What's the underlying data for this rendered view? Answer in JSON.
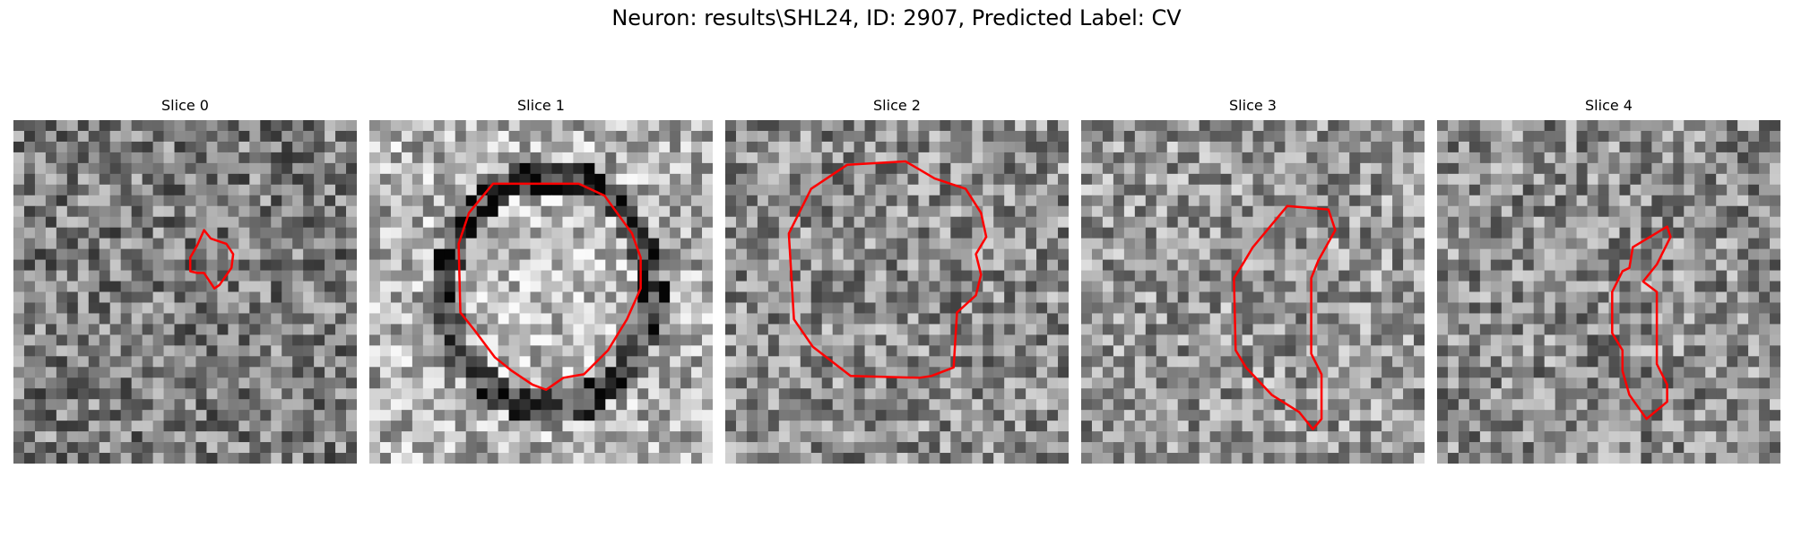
{
  "title": "Neuron: results\\SHL24, ID: 2907, Predicted Label: CV",
  "contour_color": "#ff0000",
  "panels": [
    {
      "title": "Slice 0",
      "seed": 11,
      "mean": 125,
      "ring": 0,
      "contour": [
        [
          0.555,
          0.32
        ],
        [
          0.575,
          0.345
        ],
        [
          0.62,
          0.36
        ],
        [
          0.64,
          0.39
        ],
        [
          0.635,
          0.43
        ],
        [
          0.6,
          0.48
        ],
        [
          0.585,
          0.49
        ],
        [
          0.555,
          0.445
        ],
        [
          0.535,
          0.445
        ],
        [
          0.515,
          0.44
        ],
        [
          0.515,
          0.4
        ],
        [
          0.535,
          0.365
        ]
      ]
    },
    {
      "title": "Slice 1",
      "seed": 23,
      "mean": 175,
      "ring": 1,
      "contour": [
        [
          0.36,
          0.185
        ],
        [
          0.61,
          0.185
        ],
        [
          0.685,
          0.22
        ],
        [
          0.765,
          0.33
        ],
        [
          0.79,
          0.4
        ],
        [
          0.79,
          0.49
        ],
        [
          0.75,
          0.58
        ],
        [
          0.695,
          0.67
        ],
        [
          0.625,
          0.74
        ],
        [
          0.565,
          0.75
        ],
        [
          0.515,
          0.785
        ],
        [
          0.475,
          0.77
        ],
        [
          0.415,
          0.73
        ],
        [
          0.365,
          0.69
        ],
        [
          0.305,
          0.61
        ],
        [
          0.265,
          0.56
        ],
        [
          0.26,
          0.36
        ],
        [
          0.29,
          0.27
        ]
      ]
    },
    {
      "title": "Slice 2",
      "seed": 37,
      "mean": 140,
      "ring": 0,
      "contour": [
        [
          0.355,
          0.13
        ],
        [
          0.525,
          0.12
        ],
        [
          0.61,
          0.17
        ],
        [
          0.7,
          0.2
        ],
        [
          0.745,
          0.27
        ],
        [
          0.76,
          0.34
        ],
        [
          0.73,
          0.39
        ],
        [
          0.745,
          0.45
        ],
        [
          0.73,
          0.51
        ],
        [
          0.675,
          0.56
        ],
        [
          0.665,
          0.72
        ],
        [
          0.6,
          0.745
        ],
        [
          0.565,
          0.75
        ],
        [
          0.365,
          0.745
        ],
        [
          0.255,
          0.66
        ],
        [
          0.2,
          0.58
        ],
        [
          0.185,
          0.33
        ],
        [
          0.25,
          0.2
        ]
      ]
    },
    {
      "title": "Slice 3",
      "seed": 53,
      "mean": 150,
      "ring": 0,
      "contour": [
        [
          0.6,
          0.25
        ],
        [
          0.72,
          0.26
        ],
        [
          0.74,
          0.32
        ],
        [
          0.69,
          0.41
        ],
        [
          0.67,
          0.46
        ],
        [
          0.67,
          0.68
        ],
        [
          0.7,
          0.74
        ],
        [
          0.7,
          0.87
        ],
        [
          0.675,
          0.9
        ],
        [
          0.635,
          0.85
        ],
        [
          0.555,
          0.8
        ],
        [
          0.48,
          0.72
        ],
        [
          0.45,
          0.67
        ],
        [
          0.445,
          0.46
        ],
        [
          0.47,
          0.42
        ],
        [
          0.5,
          0.37
        ],
        [
          0.55,
          0.31
        ]
      ]
    },
    {
      "title": "Slice 4",
      "seed": 71,
      "mean": 140,
      "ring": 0,
      "contour": [
        [
          0.67,
          0.31
        ],
        [
          0.68,
          0.34
        ],
        [
          0.64,
          0.42
        ],
        [
          0.6,
          0.47
        ],
        [
          0.64,
          0.5
        ],
        [
          0.64,
          0.71
        ],
        [
          0.67,
          0.77
        ],
        [
          0.67,
          0.82
        ],
        [
          0.61,
          0.87
        ],
        [
          0.56,
          0.8
        ],
        [
          0.54,
          0.73
        ],
        [
          0.54,
          0.67
        ],
        [
          0.51,
          0.62
        ],
        [
          0.51,
          0.5
        ],
        [
          0.54,
          0.44
        ],
        [
          0.56,
          0.43
        ],
        [
          0.57,
          0.37
        ],
        [
          0.62,
          0.34
        ]
      ]
    }
  ]
}
